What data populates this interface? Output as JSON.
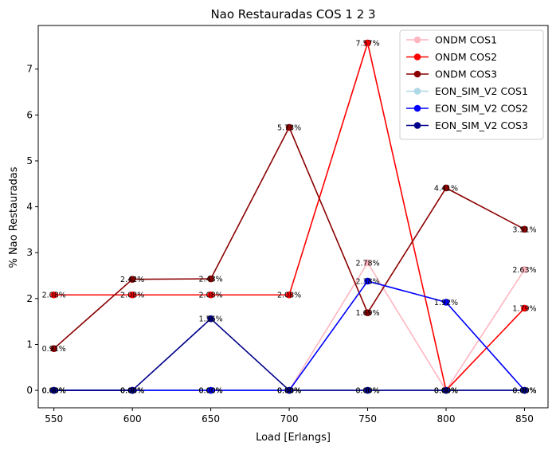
{
  "chart_data": {
    "type": "line",
    "title": "Nao Restauradas COS 1 2 3",
    "xlabel": "Load [Erlangs]",
    "ylabel": "% Nao Restauradas",
    "x": [
      550,
      600,
      650,
      700,
      750,
      800,
      850
    ],
    "xlim": [
      540,
      865
    ],
    "ylim": [
      -0.38,
      7.95
    ],
    "xticks": [
      "550",
      "600",
      "650",
      "700",
      "750",
      "800",
      "850"
    ],
    "yticks": [
      "0",
      "1",
      "2",
      "3",
      "4",
      "5",
      "6",
      "7"
    ],
    "grid": false,
    "legend_position": "top-right",
    "series": [
      {
        "name": "ONDM COS1",
        "color": "#ffb6c1",
        "values": [
          0,
          0,
          0,
          0,
          2.78,
          0,
          2.63
        ],
        "labels": [
          "0.00%",
          "0.00%",
          "0.00%",
          "0.00%",
          "2.78%",
          "0.00%",
          "2.63%"
        ]
      },
      {
        "name": "ONDM COS2",
        "color": "#ff0000",
        "values": [
          2.08,
          2.08,
          2.08,
          2.08,
          7.57,
          0,
          1.79
        ],
        "labels": [
          "2.08%",
          "2.08%",
          "2.08%",
          "2.08%",
          "7.57%",
          "0.00%",
          "1.79%"
        ]
      },
      {
        "name": "ONDM COS3",
        "color": "#8b0000",
        "values": [
          0.91,
          2.42,
          2.43,
          5.73,
          1.69,
          4.41,
          3.51
        ],
        "labels": [
          "0.91%",
          "2.42%",
          "2.43%",
          "5.73%",
          "1.69%",
          "4.41%",
          "3.51%"
        ]
      },
      {
        "name": "EON_SIM_V2 COS1",
        "color": "#add8e6",
        "values": [
          0,
          0,
          0,
          0,
          0,
          0,
          0
        ],
        "labels": [
          "0.00%",
          "0.00%",
          "0.00%",
          "0.00%",
          "0.00%",
          "0.00%",
          "0.00%"
        ]
      },
      {
        "name": "EON_SIM_V2 COS2",
        "color": "#0000ff",
        "values": [
          0,
          0,
          0,
          0,
          2.38,
          1.92,
          0
        ],
        "labels": [
          "0.00%",
          "0.00%",
          "0.00%",
          "0.00%",
          "2.38%",
          "1.92%",
          "0.00%"
        ]
      },
      {
        "name": "EON_SIM_V2 COS3",
        "color": "#00008b",
        "values": [
          0,
          0,
          1.56,
          0,
          0,
          0,
          0
        ],
        "labels": [
          "0.00%",
          "0.00%",
          "1.56%",
          "0.00%",
          "0.00%",
          "0.00%",
          "0.00%"
        ]
      }
    ]
  }
}
